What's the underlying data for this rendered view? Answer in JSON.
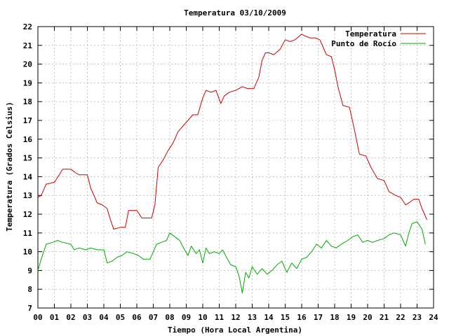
{
  "chart_data": {
    "type": "line",
    "title": "Temperatura 03/10/2009",
    "xlabel": "Tiempo (Hora Local Argentina)",
    "ylabel": "Temperatura (Grados Celsius)",
    "xlim": [
      0,
      24
    ],
    "ylim": [
      7,
      22
    ],
    "x_ticks": [
      0,
      1,
      2,
      3,
      4,
      5,
      6,
      7,
      8,
      9,
      10,
      11,
      12,
      13,
      14,
      15,
      16,
      17,
      18,
      19,
      20,
      21,
      22,
      23,
      24
    ],
    "x_tick_labels": [
      "00",
      "01",
      "02",
      "03",
      "04",
      "05",
      "06",
      "07",
      "08",
      "09",
      "10",
      "11",
      "12",
      "13",
      "14",
      "15",
      "16",
      "17",
      "18",
      "19",
      "20",
      "21",
      "22",
      "23",
      "24"
    ],
    "y_ticks": [
      7,
      8,
      9,
      10,
      11,
      12,
      13,
      14,
      15,
      16,
      17,
      18,
      19,
      20,
      21,
      22
    ],
    "y_tick_labels": [
      "7",
      "8",
      "9",
      "10",
      "11",
      "12",
      "13",
      "14",
      "15",
      "16",
      "17",
      "18",
      "19",
      "20",
      "21",
      "22"
    ],
    "grid": true,
    "legend_position": "top-right",
    "series": [
      {
        "name": "Temperatura",
        "color": "#cc0000",
        "x": [
          0,
          0.2,
          0.5,
          1.0,
          1.3,
          1.5,
          2.0,
          2.3,
          2.5,
          3.0,
          3.2,
          3.6,
          3.9,
          4.2,
          4.4,
          4.6,
          5.0,
          5.3,
          5.5,
          6.0,
          6.3,
          6.6,
          6.9,
          7.1,
          7.3,
          7.6,
          7.9,
          8.2,
          8.5,
          8.8,
          9.1,
          9.4,
          9.7,
          10.0,
          10.2,
          10.5,
          10.8,
          11.1,
          11.3,
          11.6,
          12.0,
          12.4,
          12.7,
          13.1,
          13.4,
          13.6,
          13.8,
          14.0,
          14.3,
          14.7,
          15.0,
          15.3,
          15.6,
          16.0,
          16.2,
          16.5,
          16.8,
          17.1,
          17.3,
          17.5,
          17.8,
          18.0,
          18.2,
          18.5,
          18.9,
          19.2,
          19.5,
          19.9,
          20.2,
          20.6,
          21.0,
          21.3,
          21.7,
          22.0,
          22.3,
          22.5,
          22.8,
          23.1,
          23.3,
          23.6
        ],
        "values": [
          12.9,
          13.0,
          13.6,
          13.7,
          14.1,
          14.4,
          14.4,
          14.2,
          14.1,
          14.1,
          13.4,
          12.6,
          12.5,
          12.3,
          11.7,
          11.2,
          11.3,
          11.3,
          12.2,
          12.2,
          11.8,
          11.8,
          11.8,
          12.5,
          14.5,
          14.9,
          15.4,
          15.8,
          16.4,
          16.7,
          17.0,
          17.3,
          17.3,
          18.2,
          18.6,
          18.5,
          18.6,
          17.9,
          18.3,
          18.5,
          18.6,
          18.8,
          18.7,
          18.7,
          19.3,
          20.2,
          20.6,
          20.6,
          20.5,
          20.8,
          21.3,
          21.2,
          21.3,
          21.6,
          21.5,
          21.4,
          21.4,
          21.3,
          20.9,
          20.5,
          20.4,
          19.7,
          18.8,
          17.8,
          17.7,
          16.5,
          15.2,
          15.1,
          14.5,
          13.9,
          13.8,
          13.2,
          13.0,
          12.9,
          12.5,
          12.6,
          12.8,
          12.8,
          12.3,
          11.7
        ]
      },
      {
        "name": "Punto de Rocío",
        "color": "#00aa00",
        "x": [
          0,
          0.2,
          0.5,
          0.9,
          1.2,
          1.5,
          2.0,
          2.2,
          2.5,
          2.9,
          3.2,
          3.6,
          4.0,
          4.2,
          4.5,
          4.8,
          5.1,
          5.4,
          5.8,
          6.1,
          6.4,
          6.8,
          7.2,
          7.5,
          7.8,
          8.0,
          8.3,
          8.6,
          8.9,
          9.1,
          9.3,
          9.6,
          9.8,
          10.0,
          10.2,
          10.4,
          10.7,
          11.0,
          11.2,
          11.5,
          11.7,
          12.0,
          12.2,
          12.4,
          12.6,
          12.8,
          13.0,
          13.3,
          13.6,
          13.9,
          14.2,
          14.5,
          14.8,
          15.1,
          15.4,
          15.7,
          16.0,
          16.3,
          16.6,
          16.9,
          17.2,
          17.5,
          17.8,
          18.1,
          18.4,
          18.8,
          19.1,
          19.4,
          19.7,
          20.0,
          20.3,
          20.6,
          21.0,
          21.3,
          21.6,
          22.0,
          22.3,
          22.5,
          22.7,
          23.0,
          23.3,
          23.5
        ],
        "values": [
          9.0,
          9.6,
          10.4,
          10.5,
          10.6,
          10.5,
          10.4,
          10.1,
          10.2,
          10.1,
          10.2,
          10.1,
          10.1,
          9.4,
          9.5,
          9.7,
          9.8,
          10.0,
          9.9,
          9.8,
          9.6,
          9.6,
          10.4,
          10.5,
          10.6,
          11.0,
          10.8,
          10.6,
          10.1,
          9.8,
          10.3,
          9.9,
          10.1,
          9.4,
          10.2,
          9.9,
          10.0,
          9.9,
          10.1,
          9.6,
          9.3,
          9.2,
          8.7,
          7.8,
          8.9,
          8.6,
          9.2,
          8.8,
          9.1,
          8.8,
          9.0,
          9.3,
          9.5,
          8.9,
          9.4,
          9.1,
          9.6,
          9.7,
          10.0,
          10.4,
          10.2,
          10.6,
          10.3,
          10.2,
          10.4,
          10.6,
          10.8,
          10.9,
          10.5,
          10.6,
          10.5,
          10.6,
          10.7,
          10.9,
          11.0,
          10.9,
          10.3,
          11.0,
          11.5,
          11.6,
          11.2,
          10.4
        ]
      }
    ]
  }
}
